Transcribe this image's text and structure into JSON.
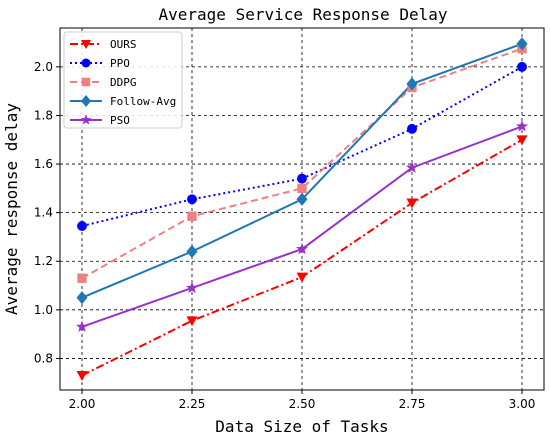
{
  "chart_data": {
    "type": "line",
    "title": "Average Service Response Delay",
    "xlabel": "Data Size of Tasks",
    "ylabel": "Average response delay",
    "x": [
      2.0,
      2.25,
      2.5,
      2.75,
      3.0
    ],
    "x_tick_labels": [
      "2.00",
      "2.25",
      "2.50",
      "2.75",
      "3.00"
    ],
    "y_ticks": [
      0.8,
      1.0,
      1.2,
      1.4,
      1.6,
      1.8,
      2.0
    ],
    "y_tick_labels": [
      "0.8",
      "1.0",
      "1.2",
      "1.4",
      "1.6",
      "1.8",
      "2.0"
    ],
    "xlim": [
      1.95,
      3.05
    ],
    "ylim": [
      0.67,
      2.16
    ],
    "grid": true,
    "legend_position": "top-left",
    "series": [
      {
        "name": "OURS",
        "values": [
          0.73,
          0.955,
          1.135,
          1.44,
          1.7
        ],
        "color": "#ff0000",
        "marker": "triangle-down",
        "line_style": "dash-dot"
      },
      {
        "name": "PPO",
        "values": [
          1.345,
          1.455,
          1.54,
          1.745,
          2.0
        ],
        "color": "#0000ff",
        "marker": "circle",
        "line_style": "dotted"
      },
      {
        "name": "DDPG",
        "values": [
          1.13,
          1.385,
          1.5,
          1.915,
          2.075
        ],
        "color": "#f08080",
        "marker": "square",
        "line_style": "dashed"
      },
      {
        "name": "Follow-Avg",
        "values": [
          1.05,
          1.24,
          1.455,
          1.93,
          2.095
        ],
        "color": "#1f77b4",
        "marker": "diamond",
        "line_style": "solid"
      },
      {
        "name": "PSO",
        "values": [
          0.93,
          1.09,
          1.25,
          1.585,
          1.755
        ],
        "color": "#9932cc",
        "marker": "star",
        "line_style": "solid"
      }
    ]
  }
}
